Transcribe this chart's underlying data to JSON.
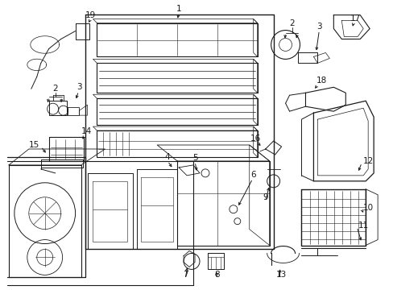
{
  "bg_color": "#ffffff",
  "line_color": "#1a1a1a",
  "fig_width": 4.89,
  "fig_height": 3.6,
  "dpi": 100,
  "label_fs": 7.5,
  "lw": 0.7
}
